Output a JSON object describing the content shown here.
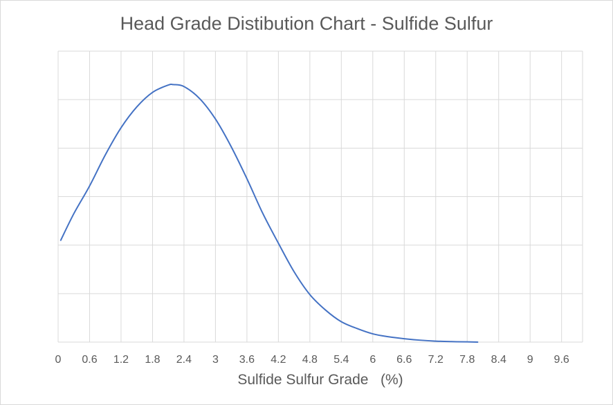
{
  "chart_data": {
    "type": "line",
    "title": "Head Grade Distibution Chart - Sulfide Sulfur",
    "xlabel": "Sulfide Sulfur Grade   (%)",
    "ylabel": "",
    "x_tick_labels": [
      "0",
      "0.6",
      "1.2",
      "1.8",
      "2.4",
      "3",
      "3.6",
      "4.2",
      "4.8",
      "5.4",
      "6",
      "6.6",
      "7.2",
      "7.8",
      "8.4",
      "9",
      "9.6"
    ],
    "xlim": [
      0,
      10.0
    ],
    "ylim": [
      0,
      6
    ],
    "y_tick_labels_shown": false,
    "grid": true,
    "legend": "none",
    "series": [
      {
        "color": "#4472c4",
        "x": [
          0.05,
          0.3,
          0.6,
          0.9,
          1.2,
          1.5,
          1.8,
          2.1,
          2.2,
          2.4,
          2.7,
          3.0,
          3.3,
          3.6,
          3.9,
          4.2,
          4.5,
          4.8,
          5.1,
          5.4,
          5.7,
          6.0,
          6.3,
          6.6,
          6.9,
          7.2,
          7.5,
          7.8,
          8.0
        ],
        "y": [
          2.1,
          2.65,
          3.22,
          3.86,
          4.42,
          4.85,
          5.15,
          5.3,
          5.31,
          5.27,
          5.02,
          4.6,
          4.03,
          3.37,
          2.66,
          2.04,
          1.45,
          0.98,
          0.66,
          0.42,
          0.28,
          0.17,
          0.11,
          0.07,
          0.04,
          0.02,
          0.01,
          0.005,
          0.0
        ]
      }
    ]
  }
}
